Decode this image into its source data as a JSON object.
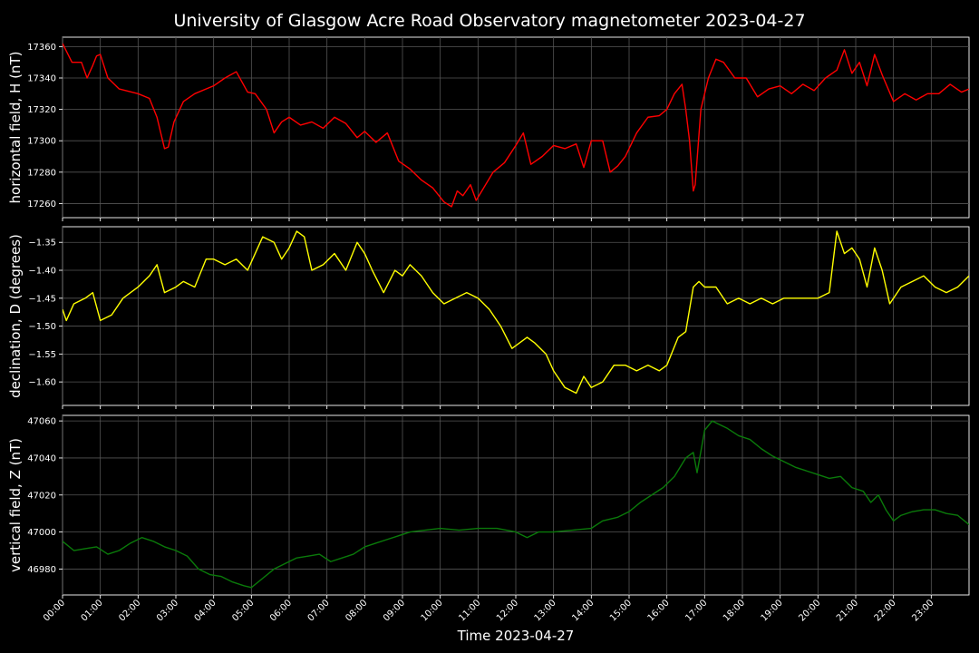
{
  "chart_data": {
    "type": "line",
    "title": "University of Glasgow Acre Road Observatory magnetometer 2023-04-27",
    "xlabel": "Time 2023-04-27",
    "x_ticks": [
      "00:00",
      "01:00",
      "02:00",
      "03:00",
      "04:00",
      "05:00",
      "06:00",
      "07:00",
      "08:00",
      "09:00",
      "10:00",
      "11:00",
      "12:00",
      "13:00",
      "14:00",
      "15:00",
      "16:00",
      "17:00",
      "18:00",
      "19:00",
      "20:00",
      "21:00",
      "22:00",
      "23:00"
    ],
    "x_unit": "hours",
    "xlim": [
      0,
      24
    ],
    "grid": true,
    "panels": [
      {
        "name": "horizontal-field",
        "ylabel": "horizontal field, H (nT)",
        "color": "#ff0000",
        "ylim": [
          17251,
          17366
        ],
        "yticks": [
          17260,
          17280,
          17300,
          17320,
          17340,
          17360
        ],
        "ytick_labels": [
          "17260",
          "17280",
          "17300",
          "17320",
          "17340",
          "17360"
        ],
        "x": [
          0,
          0.25,
          0.5,
          0.65,
          0.8,
          0.9,
          1.0,
          1.2,
          1.5,
          2.0,
          2.3,
          2.5,
          2.7,
          2.8,
          2.95,
          3.2,
          3.5,
          4.0,
          4.3,
          4.6,
          4.9,
          5.1,
          5.4,
          5.6,
          5.8,
          6.0,
          6.3,
          6.6,
          6.9,
          7.2,
          7.5,
          7.8,
          8.0,
          8.3,
          8.6,
          8.9,
          9.2,
          9.5,
          9.8,
          10.1,
          10.3,
          10.45,
          10.6,
          10.8,
          10.95,
          11.1,
          11.4,
          11.7,
          12.0,
          12.2,
          12.4,
          12.7,
          13.0,
          13.3,
          13.6,
          13.8,
          14.0,
          14.3,
          14.5,
          14.7,
          14.9,
          15.2,
          15.5,
          15.8,
          16.0,
          16.2,
          16.4,
          16.5,
          16.6,
          16.7,
          16.75,
          16.9,
          17.1,
          17.3,
          17.5,
          17.8,
          18.1,
          18.4,
          18.7,
          19.0,
          19.3,
          19.6,
          19.9,
          20.2,
          20.5,
          20.7,
          20.9,
          21.1,
          21.3,
          21.5,
          21.7,
          22.0,
          22.3,
          22.6,
          22.9,
          23.2,
          23.5,
          23.8,
          24.0
        ],
        "values": [
          17362,
          17350,
          17350,
          17340,
          17348,
          17354,
          17355,
          17340,
          17333,
          17330,
          17327,
          17315,
          17295,
          17296,
          17312,
          17325,
          17330,
          17335,
          17340,
          17344,
          17331,
          17330,
          17320,
          17305,
          17312,
          17315,
          17310,
          17312,
          17308,
          17315,
          17311,
          17302,
          17306,
          17299,
          17305,
          17287,
          17282,
          17275,
          17270,
          17261,
          17258,
          17268,
          17265,
          17272,
          17262,
          17268,
          17280,
          17286,
          17297,
          17305,
          17285,
          17290,
          17297,
          17295,
          17298,
          17283,
          17300,
          17300,
          17280,
          17284,
          17290,
          17305,
          17315,
          17316,
          17320,
          17330,
          17336,
          17320,
          17300,
          17268,
          17272,
          17320,
          17340,
          17352,
          17350,
          17340,
          17340,
          17328,
          17333,
          17335,
          17330,
          17336,
          17332,
          17340,
          17345,
          17358,
          17343,
          17350,
          17335,
          17355,
          17342,
          17325,
          17330,
          17326,
          17330,
          17330,
          17336,
          17331,
          17333
        ]
      },
      {
        "name": "declination",
        "ylabel": "declination, D (degrees)",
        "color": "#ffff00",
        "ylim": [
          -1.642,
          -1.322
        ],
        "yticks": [
          -1.6,
          -1.55,
          -1.5,
          -1.45,
          -1.4,
          -1.35
        ],
        "ytick_labels": [
          "−1.60",
          "−1.55",
          "−1.50",
          "−1.45",
          "−1.40",
          "−1.35"
        ],
        "x": [
          0,
          0.1,
          0.3,
          0.6,
          0.8,
          1.0,
          1.3,
          1.6,
          2.0,
          2.3,
          2.5,
          2.7,
          3.0,
          3.2,
          3.5,
          3.8,
          4.0,
          4.3,
          4.6,
          4.9,
          5.1,
          5.3,
          5.6,
          5.8,
          6.0,
          6.2,
          6.4,
          6.6,
          6.9,
          7.2,
          7.5,
          7.8,
          8.0,
          8.2,
          8.5,
          8.8,
          9.0,
          9.2,
          9.5,
          9.8,
          10.1,
          10.4,
          10.7,
          11.0,
          11.3,
          11.6,
          11.9,
          12.1,
          12.3,
          12.5,
          12.8,
          13.0,
          13.3,
          13.6,
          13.8,
          14.0,
          14.3,
          14.6,
          14.9,
          15.2,
          15.5,
          15.8,
          16.0,
          16.3,
          16.5,
          16.7,
          16.85,
          17.0,
          17.3,
          17.6,
          17.9,
          18.2,
          18.5,
          18.8,
          19.1,
          19.4,
          19.7,
          20.0,
          20.3,
          20.5,
          20.7,
          20.9,
          21.1,
          21.3,
          21.5,
          21.7,
          21.9,
          22.2,
          22.5,
          22.8,
          23.1,
          23.4,
          23.7,
          24.0
        ],
        "values": [
          -1.47,
          -1.49,
          -1.46,
          -1.45,
          -1.44,
          -1.49,
          -1.48,
          -1.45,
          -1.43,
          -1.41,
          -1.39,
          -1.44,
          -1.43,
          -1.42,
          -1.43,
          -1.38,
          -1.38,
          -1.39,
          -1.38,
          -1.4,
          -1.37,
          -1.34,
          -1.35,
          -1.38,
          -1.36,
          -1.33,
          -1.34,
          -1.4,
          -1.39,
          -1.37,
          -1.4,
          -1.35,
          -1.37,
          -1.4,
          -1.44,
          -1.4,
          -1.41,
          -1.39,
          -1.41,
          -1.44,
          -1.46,
          -1.45,
          -1.44,
          -1.45,
          -1.47,
          -1.5,
          -1.54,
          -1.53,
          -1.52,
          -1.53,
          -1.55,
          -1.58,
          -1.61,
          -1.62,
          -1.59,
          -1.61,
          -1.6,
          -1.57,
          -1.57,
          -1.58,
          -1.57,
          -1.58,
          -1.57,
          -1.52,
          -1.51,
          -1.43,
          -1.42,
          -1.43,
          -1.43,
          -1.46,
          -1.45,
          -1.46,
          -1.45,
          -1.46,
          -1.45,
          -1.45,
          -1.45,
          -1.45,
          -1.44,
          -1.33,
          -1.37,
          -1.36,
          -1.38,
          -1.43,
          -1.36,
          -1.4,
          -1.46,
          -1.43,
          -1.42,
          -1.41,
          -1.43,
          -1.44,
          -1.43,
          -1.41
        ]
      },
      {
        "name": "vertical-field",
        "ylabel": "vertical field, Z (nT)",
        "color": "#0a7a0a",
        "ylim": [
          46966,
          47063
        ],
        "yticks": [
          46980,
          47000,
          47020,
          47040,
          47060
        ],
        "ytick_labels": [
          "46980",
          "47000",
          "47020",
          "47040",
          "47060"
        ],
        "x": [
          0,
          0.3,
          0.6,
          0.9,
          1.2,
          1.5,
          1.8,
          2.1,
          2.4,
          2.7,
          3.0,
          3.3,
          3.6,
          3.9,
          4.2,
          4.5,
          4.8,
          5.0,
          5.3,
          5.6,
          5.9,
          6.2,
          6.5,
          6.8,
          7.1,
          7.4,
          7.7,
          8.0,
          8.3,
          8.6,
          8.9,
          9.2,
          9.6,
          10.0,
          10.5,
          11.0,
          11.5,
          12.0,
          12.3,
          12.6,
          13.0,
          13.5,
          14.0,
          14.3,
          14.7,
          15.0,
          15.3,
          15.6,
          15.9,
          16.2,
          16.5,
          16.7,
          16.8,
          17.0,
          17.2,
          17.4,
          17.6,
          17.9,
          18.2,
          18.5,
          18.8,
          19.1,
          19.4,
          19.7,
          20.0,
          20.3,
          20.6,
          20.9,
          21.2,
          21.4,
          21.6,
          21.8,
          22.0,
          22.2,
          22.5,
          22.8,
          23.1,
          23.4,
          23.7,
          24.0
        ],
        "values": [
          46995,
          46990,
          46991,
          46992,
          46988,
          46990,
          46994,
          46997,
          46995,
          46992,
          46990,
          46987,
          46980,
          46977,
          46976,
          46973,
          46971,
          46970,
          46975,
          46980,
          46983,
          46986,
          46987,
          46988,
          46984,
          46986,
          46988,
          46992,
          46994,
          46996,
          46998,
          47000,
          47001,
          47002,
          47001,
          47002,
          47002,
          47000,
          46997,
          47000,
          47000,
          47001,
          47002,
          47006,
          47008,
          47011,
          47016,
          47020,
          47024,
          47030,
          47040,
          47043,
          47032,
          47055,
          47060,
          47058,
          47056,
          47052,
          47050,
          47045,
          47041,
          47038,
          47035,
          47033,
          47031,
          47029,
          47030,
          47024,
          47022,
          47016,
          47020,
          47012,
          47006,
          47009,
          47011,
          47012,
          47012,
          47010,
          47009,
          47004
        ]
      }
    ]
  }
}
